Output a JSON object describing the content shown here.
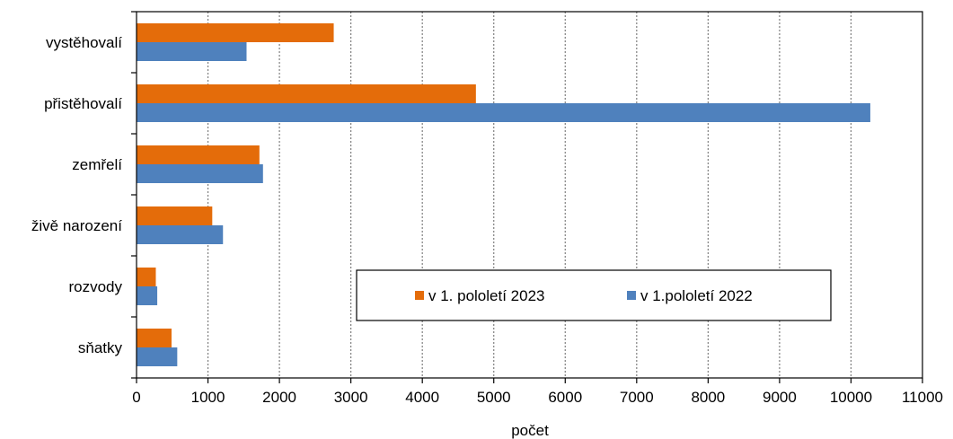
{
  "chart_data": {
    "type": "bar",
    "orientation": "horizontal",
    "categories": [
      "vystěhovalí",
      "přistěhovalí",
      "zemřelí",
      "živě narození",
      "rozvody",
      "sňatky"
    ],
    "series": [
      {
        "name": "v 1. pololetí 2023",
        "color": "#e46c0a",
        "values": [
          2760,
          4750,
          1720,
          1060,
          270,
          490
        ]
      },
      {
        "name": "v 1.pololetí 2022",
        "color": "#4f81bd",
        "values": [
          1540,
          10270,
          1770,
          1210,
          290,
          570
        ]
      }
    ],
    "xlabel": "počet",
    "xlim": [
      0,
      11000
    ],
    "xticks": [
      0,
      1000,
      2000,
      3000,
      4000,
      5000,
      6000,
      7000,
      8000,
      9000,
      10000,
      11000
    ],
    "grid": true,
    "legend_position": "inside-bottom-right"
  }
}
